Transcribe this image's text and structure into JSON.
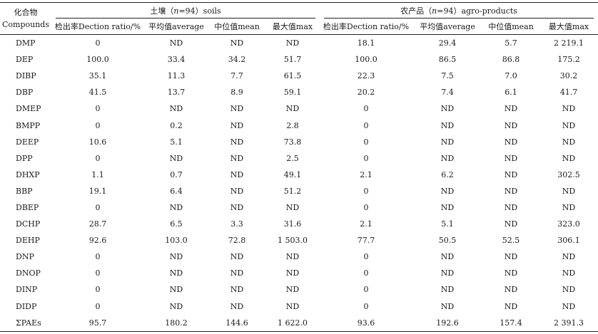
{
  "header": {
    "compound_cn": "化合物",
    "compound_en": "Compounds",
    "soils_group": {
      "cn": "土壤（",
      "n_italic": "n",
      "n_rest": "=94）soils"
    },
    "agro_group": {
      "cn": "农产品（",
      "n_italic": "n",
      "n_rest": "=94）agro-products"
    },
    "columns": [
      "检出率Dection ratio/%",
      "平均值average",
      "中位值mean",
      "最大值max",
      "检出率Dection ratio/%",
      "平均值average",
      "中位值mean",
      "最大值max"
    ]
  },
  "rows": [
    [
      "DMP",
      "0",
      "ND",
      "ND",
      "ND",
      "18.1",
      "29.4",
      "5.7",
      "2 219.1"
    ],
    [
      "DEP",
      "100.0",
      "33.4",
      "34.2",
      "51.7",
      "100.0",
      "86.5",
      "86.8",
      "175.2"
    ],
    [
      "DIBP",
      "35.1",
      "11.3",
      "7.7",
      "61.5",
      "22.3",
      "7.5",
      "7.0",
      "30.2"
    ],
    [
      "DBP",
      "41.5",
      "13.7",
      "8.9",
      "59.1",
      "20.2",
      "7.4",
      "6.1",
      "41.7"
    ],
    [
      "DMEP",
      "0",
      "ND",
      "ND",
      "ND",
      "0",
      "ND",
      "ND",
      "ND"
    ],
    [
      "BMPP",
      "0",
      "0.2",
      "ND",
      "2.8",
      "0",
      "ND",
      "ND",
      "ND"
    ],
    [
      "DEEP",
      "10.6",
      "5.1",
      "ND",
      "73.8",
      "0",
      "ND",
      "ND",
      "ND"
    ],
    [
      "DPP",
      "0",
      "ND",
      "ND",
      "2.5",
      "0",
      "ND",
      "ND",
      "ND"
    ],
    [
      "DHXP",
      "1.1",
      "0.7",
      "ND",
      "49.1",
      "2.1",
      "6.2",
      "ND",
      "302.5"
    ],
    [
      "BBP",
      "19.1",
      "6.4",
      "ND",
      "51.2",
      "0",
      "ND",
      "ND",
      "ND"
    ],
    [
      "DBEP",
      "0",
      "ND",
      "ND",
      "ND",
      "0",
      "ND",
      "ND",
      "ND"
    ],
    [
      "DCHP",
      "28.7",
      "6.5",
      "3.3",
      "31.6",
      "2.1",
      "5.1",
      "ND",
      "323.0"
    ],
    [
      "DEHP",
      "92.6",
      "103.0",
      "72.8",
      "1 503.0",
      "77.7",
      "50.5",
      "52.5",
      "306.1"
    ],
    [
      "DNP",
      "0",
      "ND",
      "ND",
      "ND",
      "0",
      "ND",
      "ND",
      "ND"
    ],
    [
      "DNOP",
      "0",
      "ND",
      "ND",
      "ND",
      "0",
      "ND",
      "ND",
      "ND"
    ],
    [
      "DINP",
      "0",
      "ND",
      "ND",
      "ND",
      "0",
      "ND",
      "ND",
      "ND"
    ],
    [
      "DIDP",
      "0",
      "ND",
      "ND",
      "ND",
      "0",
      "ND",
      "ND",
      "ND"
    ],
    [
      "ΣPAEs",
      "95.7",
      "180.2",
      "144.6",
      "1 622.0",
      "93.6",
      "192.6",
      "157.4",
      "2 391.3"
    ]
  ]
}
